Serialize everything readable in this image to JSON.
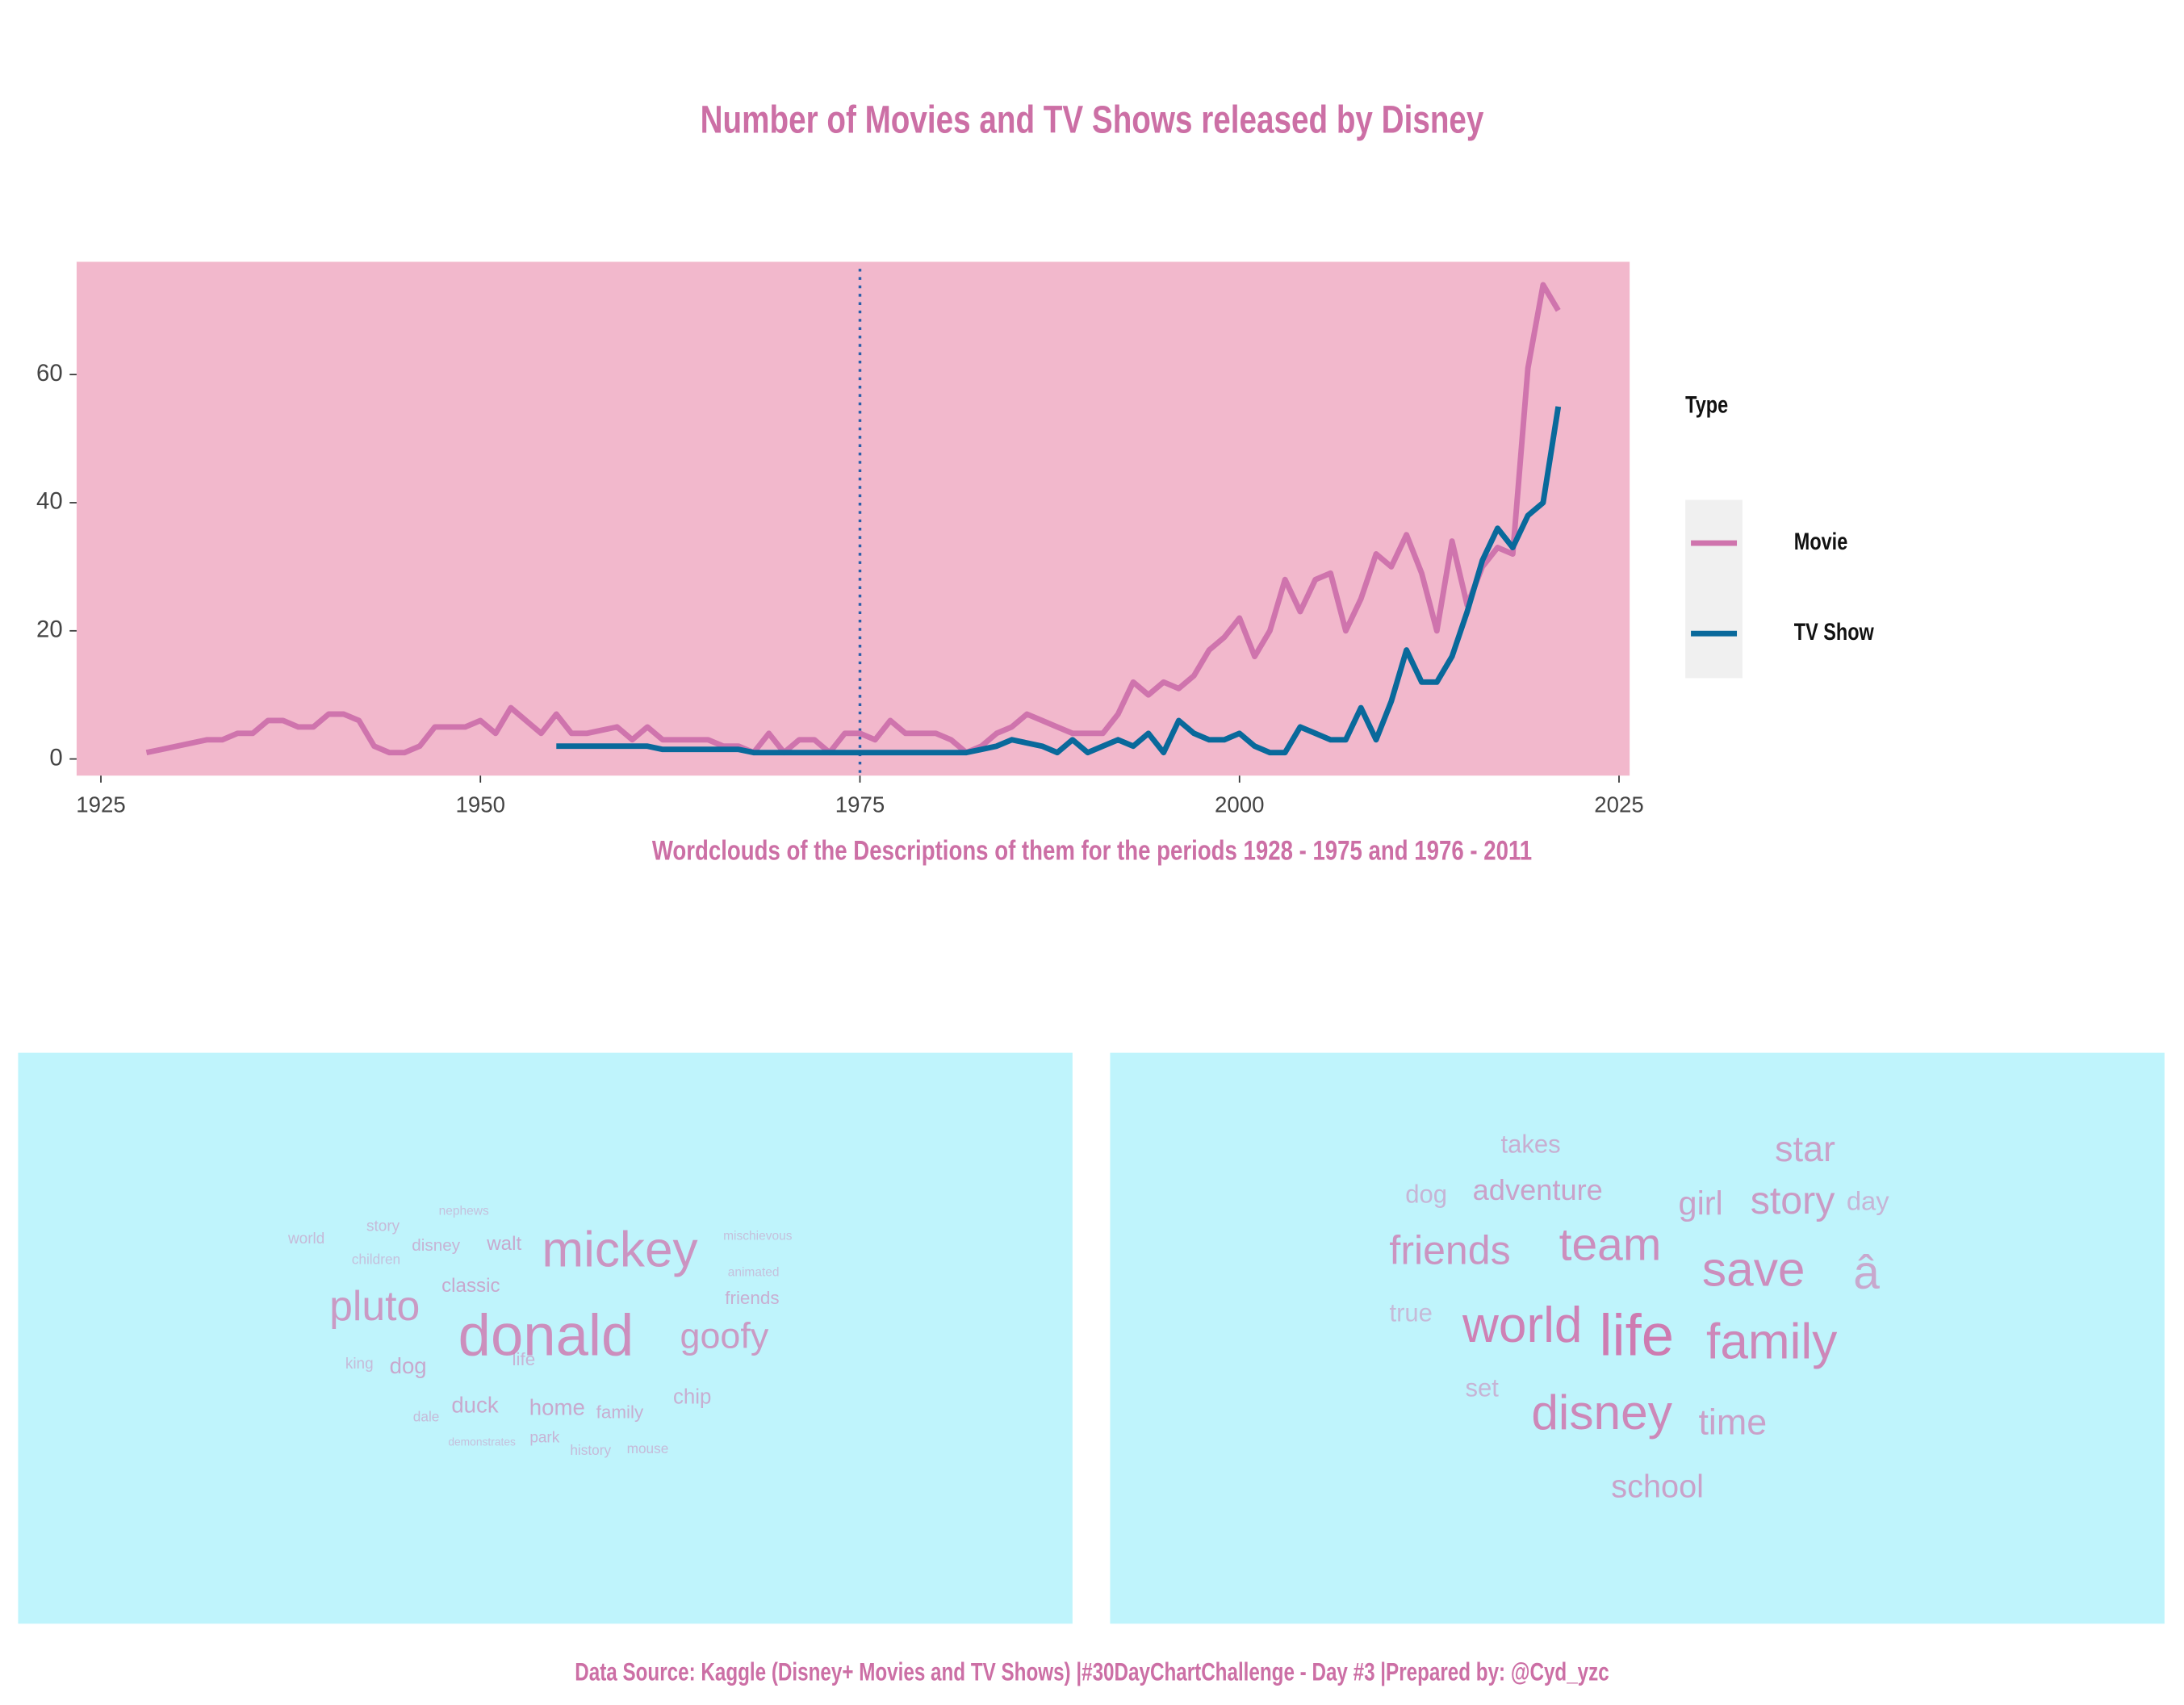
{
  "chart_data": {
    "type": "line",
    "title": "Number of Movies and TV Shows released by Disney",
    "x": [
      1928,
      1929,
      1930,
      1931,
      1932,
      1933,
      1934,
      1935,
      1936,
      1937,
      1938,
      1939,
      1940,
      1941,
      1942,
      1943,
      1944,
      1945,
      1946,
      1947,
      1948,
      1949,
      1950,
      1951,
      1952,
      1953,
      1954,
      1955,
      1956,
      1957,
      1958,
      1959,
      1960,
      1961,
      1962,
      1963,
      1964,
      1965,
      1966,
      1967,
      1968,
      1969,
      1970,
      1971,
      1972,
      1973,
      1974,
      1975,
      1976,
      1977,
      1978,
      1979,
      1980,
      1981,
      1982,
      1983,
      1984,
      1985,
      1986,
      1987,
      1988,
      1989,
      1990,
      1991,
      1992,
      1993,
      1994,
      1995,
      1996,
      1997,
      1998,
      1999,
      2000,
      2001,
      2002,
      2003,
      2004,
      2005,
      2006,
      2007,
      2008,
      2009,
      2010,
      2011,
      2012,
      2013,
      2014,
      2015,
      2016,
      2017,
      2018,
      2019,
      2020,
      2021
    ],
    "series": [
      {
        "name": "Movie",
        "color": "#cf74ad",
        "values": [
          1,
          1.5,
          2,
          2.5,
          3,
          3,
          4,
          4,
          6,
          6,
          5,
          5,
          7,
          7,
          6,
          2,
          1,
          1,
          2,
          5,
          5,
          5,
          6,
          4,
          8,
          6,
          4,
          7,
          4,
          4,
          4.5,
          5,
          3,
          5,
          3,
          3,
          3,
          3,
          2,
          2,
          1,
          4,
          1,
          3,
          3,
          1,
          4,
          4,
          3,
          6,
          4,
          4,
          4,
          3,
          1,
          2,
          4,
          5,
          7,
          6,
          5,
          4,
          4,
          4,
          7,
          12,
          10,
          12,
          11,
          13,
          17,
          19,
          22,
          16,
          20,
          28,
          23,
          28,
          29,
          20,
          25,
          32,
          30,
          35,
          29,
          20,
          34,
          24,
          30,
          33,
          32,
          61,
          74,
          70
        ]
      },
      {
        "name": "TV Show",
        "color": "#09699b",
        "values": [
          null,
          null,
          null,
          null,
          null,
          null,
          null,
          null,
          null,
          null,
          null,
          null,
          null,
          null,
          null,
          null,
          null,
          null,
          null,
          null,
          null,
          null,
          null,
          null,
          null,
          null,
          null,
          2,
          2,
          2,
          2,
          2,
          2,
          2,
          1.5,
          1.5,
          1.5,
          1.5,
          1.5,
          1.5,
          1,
          1,
          1,
          1,
          1,
          1,
          1,
          1,
          1,
          1,
          1,
          1,
          1,
          1,
          1,
          1.5,
          2,
          3,
          2.5,
          2,
          1,
          3,
          1,
          2,
          3,
          2,
          4,
          1,
          6,
          4,
          3,
          3,
          4,
          2,
          1,
          1,
          5,
          4,
          3,
          3,
          8,
          3,
          9,
          17,
          12,
          12,
          16,
          23,
          31,
          36,
          33,
          38,
          40,
          55
        ]
      }
    ],
    "xlim": [
      1923.4,
      2025.7
    ],
    "xticks": [
      1925,
      1950,
      1975,
      2000,
      2025
    ],
    "ylim": [
      -2.6,
      77.6
    ],
    "yticks": [
      0,
      20,
      40,
      60
    ],
    "vline": 1975,
    "grid": false,
    "legend_title": "Type",
    "legend": "right",
    "background": "#f2b8cc"
  },
  "wordcloud_heading": "Wordclouds of the Descriptions of them for the periods 1928 - 1975 and  1976 - 2011",
  "wordclouds": [
    {
      "words": [
        "world",
        "story",
        "nephews",
        "children",
        "disney",
        "walt",
        "mickey",
        "mischievous",
        "animated",
        "classic",
        "friends",
        "pluto",
        "donald",
        "goofy",
        "king",
        "dog",
        "life",
        "duck",
        "home",
        "family",
        "chip",
        "dale",
        "demonstrates",
        "park",
        "history",
        "mouse"
      ]
    },
    {
      "words": [
        "takes",
        "star",
        "dog",
        "adventure",
        "girl",
        "story",
        "day",
        "friends",
        "team",
        "save",
        "â",
        "true",
        "world",
        "life",
        "family",
        "set",
        "disney",
        "time",
        "school"
      ]
    }
  ],
  "caption": "Data Source: Kaggle (Disney+ Movies and TV Shows) |#30DayChartChallenge - Day #3 |Prepared by: @Cyd_yzc"
}
